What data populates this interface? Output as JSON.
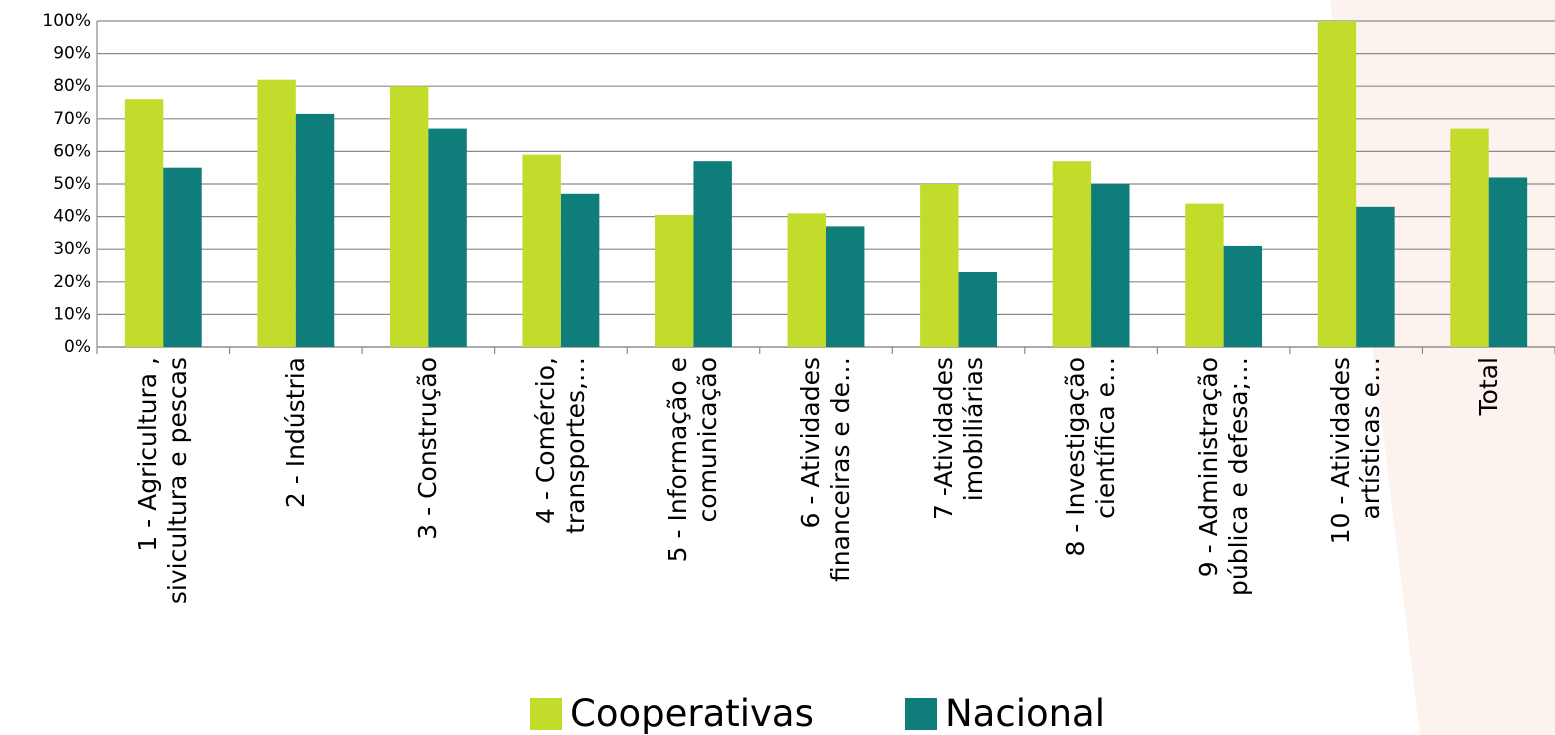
{
  "chart_data": {
    "type": "bar",
    "categories": [
      "1 - Agricultura ,\nsivicultura e pescas",
      "2 - Indústria",
      "3 - Construção",
      "4 - Comércio,\ntransportes,…",
      "5 - Informação e\ncomunicação",
      "6 - Atividades\nfinanceiras e de…",
      "7 -Atividades\nimobiliárias",
      "8 - Investigação\ncientífica e…",
      "9 - Administração\npública e defesa;…",
      "10 - Atividades\nartísticas e…",
      "Total"
    ],
    "series": [
      {
        "name": "Cooperativas",
        "color": "#c3dc2c",
        "values": [
          76,
          82,
          80,
          59,
          40.5,
          41,
          50,
          57,
          44,
          100,
          67
        ]
      },
      {
        "name": "Nacional",
        "color": "#0f7d7a",
        "values": [
          55,
          71.5,
          67,
          47,
          57,
          37,
          23,
          50,
          31,
          43,
          52
        ]
      }
    ],
    "ylim": [
      0,
      100
    ],
    "yticks": [
      {
        "value": 0,
        "label": "0%"
      },
      {
        "value": 10,
        "label": "10%"
      },
      {
        "value": 20,
        "label": "20%"
      },
      {
        "value": 30,
        "label": "30%"
      },
      {
        "value": 40,
        "label": "40%"
      },
      {
        "value": 50,
        "label": "50%"
      },
      {
        "value": 60,
        "label": "60%"
      },
      {
        "value": 70,
        "label": "70%"
      },
      {
        "value": 80,
        "label": "80%"
      },
      {
        "value": 90,
        "label": "90%"
      },
      {
        "value": 100,
        "label": "100%"
      }
    ],
    "grid": true,
    "legend": "bottom"
  }
}
